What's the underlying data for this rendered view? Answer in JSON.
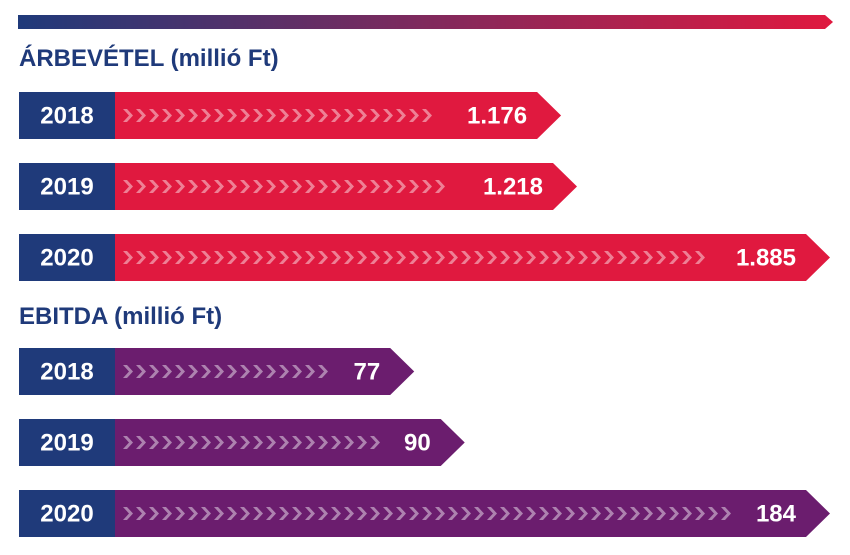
{
  "colors": {
    "year_box": "#1f3a7a",
    "revenue_bar": "#e0193f",
    "ebitda_bar": "#6b1d6e",
    "title": "#1f3a7a",
    "top_bar_start": "#1f3a7a",
    "top_bar_end": "#e0193f"
  },
  "chart_data": [
    {
      "type": "bar",
      "orientation": "horizontal",
      "title": "ÁRBEVÉTEL (millió Ft)",
      "categories": [
        "2018",
        "2019",
        "2020"
      ],
      "values": [
        1176,
        1218,
        1885
      ],
      "value_labels": [
        "1.176",
        "1.218",
        "1.885"
      ],
      "bar_color": "#e0193f",
      "grid": false
    },
    {
      "type": "bar",
      "orientation": "horizontal",
      "title": "EBITDA (millió Ft)",
      "categories": [
        "2018",
        "2019",
        "2020"
      ],
      "values": [
        77,
        90,
        184
      ],
      "value_labels": [
        "77",
        "90",
        "184"
      ],
      "bar_color": "#6b1d6e",
      "grid": false
    }
  ]
}
